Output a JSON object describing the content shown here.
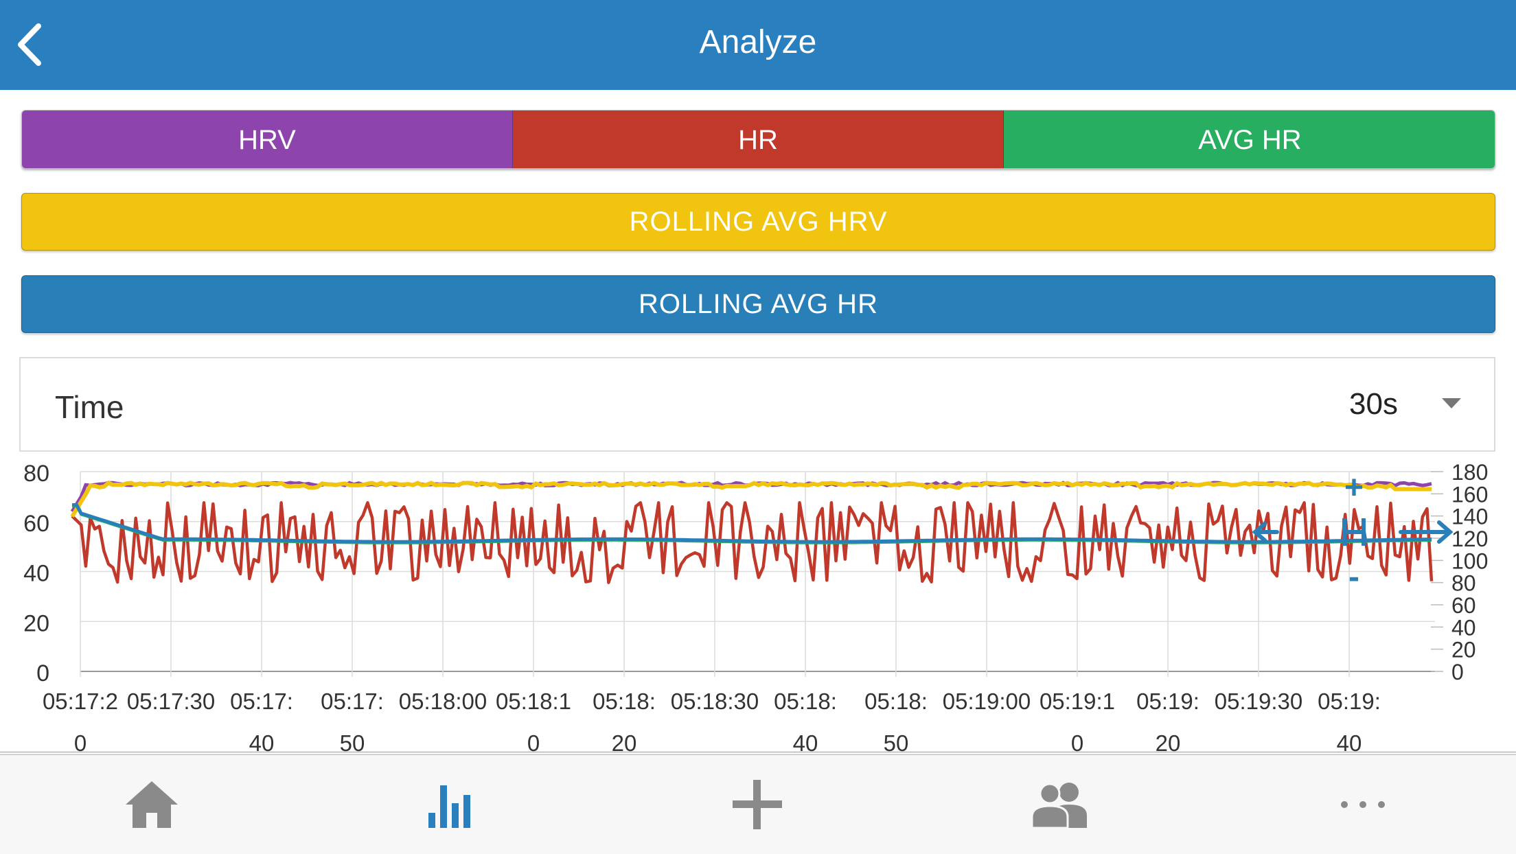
{
  "header": {
    "title": "Analyze"
  },
  "toggles": {
    "hrv": {
      "label": "HRV",
      "color": "#8e44ad"
    },
    "hr": {
      "label": "HR",
      "color": "#c0392b"
    },
    "avg_hr": {
      "label": "AVG HR",
      "color": "#27ae60"
    },
    "rolling_avg_hrv": {
      "label": "ROLLING AVG HRV",
      "color": "#f1c40f"
    },
    "rolling_avg_hr": {
      "label": "ROLLING AVG HR",
      "color": "#2980b9"
    }
  },
  "time_select": {
    "label": "Time",
    "value": "30s"
  },
  "chart_data": {
    "type": "line",
    "left_axis": {
      "ticks": [
        "0",
        "20",
        "40",
        "60",
        "80"
      ],
      "ylim": [
        0,
        80
      ]
    },
    "right_axis": {
      "ticks": [
        "0",
        "20",
        "40",
        "60",
        "80",
        "100",
        "120",
        "140",
        "160",
        "180"
      ],
      "ylim": [
        0,
        180
      ]
    },
    "x_tick_labels": [
      [
        "05:17:2",
        "0"
      ],
      [
        "05:17:30",
        ""
      ],
      [
        "05:17:",
        "40"
      ],
      [
        "05:17:",
        "50"
      ],
      [
        "05:18:00",
        ""
      ],
      [
        "05:18:1",
        "0"
      ],
      [
        "05:18:",
        "20"
      ],
      [
        "05:18:30",
        ""
      ],
      [
        "05:18:",
        "40"
      ],
      [
        "05:18:",
        "50"
      ],
      [
        "05:19:00",
        ""
      ],
      [
        "05:19:1",
        "0"
      ],
      [
        "05:19:",
        "20"
      ],
      [
        "05:19:30",
        ""
      ],
      [
        "05:19:",
        "40"
      ]
    ],
    "series": [
      {
        "color": "#8e44ad",
        "axis": "left",
        "approx_level": 75
      },
      {
        "color": "#f1c40f",
        "axis": "left",
        "approx_level": 74
      },
      {
        "color": "#c0392b",
        "axis": "right",
        "approx_range": [
          75,
          150
        ]
      },
      {
        "color": "#27ae60",
        "axis": "right",
        "approx_level": 118
      },
      {
        "color": "#2980b9",
        "axis": "right",
        "approx_level": 118
      }
    ]
  },
  "zoom_controls": {
    "plus": "+",
    "minus": "-"
  },
  "tabbar": [
    "home-icon",
    "chart-icon",
    "add-icon",
    "group-icon",
    "more-icon"
  ]
}
